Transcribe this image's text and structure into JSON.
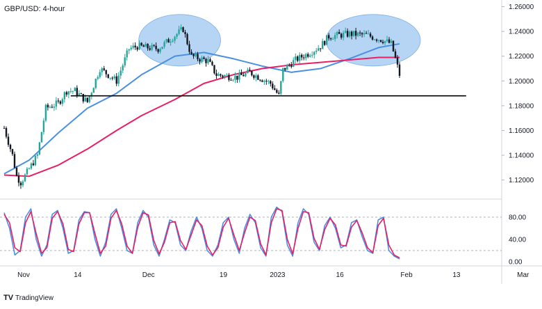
{
  "title": "GBP/USD: 4-hour",
  "brand": "TradingView",
  "brand_logo": "TV",
  "colors": {
    "up": "#26a69a",
    "down": "#131722",
    "ma_fast": "#4a90e2",
    "ma_slow": "#e91e63",
    "support": "#000000",
    "highlight": "#9ec5f0",
    "stoch_k": "#4a90e2",
    "stoch_d": "#e91e63",
    "grid_dash": "#9598a1"
  },
  "chart_data": [
    {
      "type": "candlestick",
      "title": "GBP/USD: 4-hour",
      "x_ticks": [
        "Nov",
        "14",
        "Dec",
        "19",
        "2023",
        "16",
        "Feb",
        "13",
        "Mar"
      ],
      "y_ticks": [
        "1.26000",
        "1.24000",
        "1.22000",
        "1.20000",
        "1.18000",
        "1.16000",
        "1.14000",
        "1.12000"
      ],
      "ylim": [
        1.108,
        1.262
      ],
      "price_path": [
        {
          "x": "Nov 1",
          "y": 1.162
        },
        {
          "x": "Nov 3",
          "y": 1.14
        },
        {
          "x": "Nov 4",
          "y": 1.123
        },
        {
          "x": "Nov 5",
          "y": 1.118
        },
        {
          "x": "Nov 9",
          "y": 1.14
        },
        {
          "x": "Nov 11",
          "y": 1.178
        },
        {
          "x": "Nov 14",
          "y": 1.182
        },
        {
          "x": "Nov 16",
          "y": 1.192
        },
        {
          "x": "Nov 18",
          "y": 1.192
        },
        {
          "x": "Nov 21",
          "y": 1.183
        },
        {
          "x": "Nov 24",
          "y": 1.21
        },
        {
          "x": "Nov 28",
          "y": 1.2
        },
        {
          "x": "Dec 1",
          "y": 1.226
        },
        {
          "x": "Dec 3",
          "y": 1.228
        },
        {
          "x": "Dec 8",
          "y": 1.226
        },
        {
          "x": "Dec 14",
          "y": 1.242
        },
        {
          "x": "Dec 16",
          "y": 1.22
        },
        {
          "x": "Dec 20",
          "y": 1.216
        },
        {
          "x": "Dec 22",
          "y": 1.205
        },
        {
          "x": "Dec 27",
          "y": 1.203
        },
        {
          "x": "Dec 30",
          "y": 1.207
        },
        {
          "x": "Jan 4",
          "y": 1.198
        },
        {
          "x": "Jan 6",
          "y": 1.188
        },
        {
          "x": "Jan 7",
          "y": 1.209
        },
        {
          "x": "Jan 10",
          "y": 1.217
        },
        {
          "x": "Jan 13",
          "y": 1.222
        },
        {
          "x": "Jan 16",
          "y": 1.228
        },
        {
          "x": "Jan 18",
          "y": 1.236
        },
        {
          "x": "Jan 23",
          "y": 1.238
        },
        {
          "x": "Jan 27",
          "y": 1.237
        },
        {
          "x": "Jan 31",
          "y": 1.233
        },
        {
          "x": "Feb 2",
          "y": 1.23
        },
        {
          "x": "Feb 3",
          "y": 1.218
        },
        {
          "x": "Feb 4",
          "y": 1.205
        }
      ],
      "ma_fast": [
        {
          "x": "Nov 1",
          "y": 1.125
        },
        {
          "x": "Nov 7",
          "y": 1.136
        },
        {
          "x": "Nov 14",
          "y": 1.158
        },
        {
          "x": "Nov 21",
          "y": 1.178
        },
        {
          "x": "Nov 28",
          "y": 1.19
        },
        {
          "x": "Dec 4",
          "y": 1.205
        },
        {
          "x": "Dec 12",
          "y": 1.22
        },
        {
          "x": "Dec 19",
          "y": 1.223
        },
        {
          "x": "Dec 26",
          "y": 1.218
        },
        {
          "x": "Jan 2",
          "y": 1.212
        },
        {
          "x": "Jan 9",
          "y": 1.207
        },
        {
          "x": "Jan 16",
          "y": 1.21
        },
        {
          "x": "Jan 23",
          "y": 1.218
        },
        {
          "x": "Jan 30",
          "y": 1.227
        },
        {
          "x": "Feb 4",
          "y": 1.23
        }
      ],
      "ma_slow": [
        {
          "x": "Nov 1",
          "y": 1.124
        },
        {
          "x": "Nov 7",
          "y": 1.123
        },
        {
          "x": "Nov 14",
          "y": 1.132
        },
        {
          "x": "Nov 21",
          "y": 1.145
        },
        {
          "x": "Nov 28",
          "y": 1.16
        },
        {
          "x": "Dec 4",
          "y": 1.172
        },
        {
          "x": "Dec 12",
          "y": 1.185
        },
        {
          "x": "Dec 19",
          "y": 1.198
        },
        {
          "x": "Dec 26",
          "y": 1.205
        },
        {
          "x": "Jan 2",
          "y": 1.21
        },
        {
          "x": "Jan 9",
          "y": 1.213
        },
        {
          "x": "Jan 16",
          "y": 1.215
        },
        {
          "x": "Jan 23",
          "y": 1.217
        },
        {
          "x": "Jan 30",
          "y": 1.219
        },
        {
          "x": "Feb 4",
          "y": 1.219
        }
      ],
      "support_level": {
        "y": 1.188,
        "from": "Nov 17",
        "to": "Feb 20"
      },
      "highlights": [
        {
          "label_region": "left shoulder area",
          "from": "Dec 1",
          "to": "Dec 16",
          "y_center": 1.234
        },
        {
          "label_region": "right shoulder area",
          "from": "Jan 15",
          "to": "Feb 2",
          "y_center": 1.234
        }
      ]
    },
    {
      "type": "line",
      "y_ticks": [
        "80.00",
        "40.00",
        "0.00"
      ],
      "ylim": [
        -5,
        105
      ],
      "reference_lines": [
        80,
        20
      ],
      "series": [
        {
          "role": "%K",
          "values": [
            88,
            60,
            12,
            20,
            80,
            95,
            40,
            10,
            30,
            85,
            92,
            60,
            15,
            20,
            75,
            90,
            88,
            40,
            10,
            35,
            85,
            95,
            60,
            20,
            15,
            70,
            92,
            80,
            30,
            10,
            40,
            75,
            70,
            30,
            20,
            55,
            80,
            60,
            20,
            10,
            30,
            70,
            80,
            40,
            15,
            60,
            85,
            70,
            25,
            10,
            80,
            98,
            90,
            30,
            10,
            70,
            95,
            85,
            35,
            20,
            65,
            80,
            60,
            25,
            30,
            70,
            75,
            45,
            20,
            15,
            75,
            80,
            20,
            10,
            5
          ]
        },
        {
          "role": "%D",
          "values": [
            85,
            70,
            25,
            18,
            70,
            90,
            50,
            15,
            25,
            78,
            90,
            68,
            22,
            18,
            68,
            88,
            88,
            50,
            15,
            28,
            78,
            92,
            68,
            28,
            15,
            62,
            88,
            84,
            38,
            14,
            35,
            70,
            72,
            38,
            22,
            48,
            75,
            65,
            28,
            12,
            25,
            62,
            78,
            48,
            20,
            52,
            80,
            74,
            32,
            12,
            70,
            95,
            92,
            40,
            14,
            60,
            90,
            88,
            42,
            22,
            58,
            78,
            66,
            30,
            28,
            62,
            74,
            52,
            25,
            16,
            65,
            78,
            30,
            12,
            7
          ]
        }
      ]
    }
  ]
}
